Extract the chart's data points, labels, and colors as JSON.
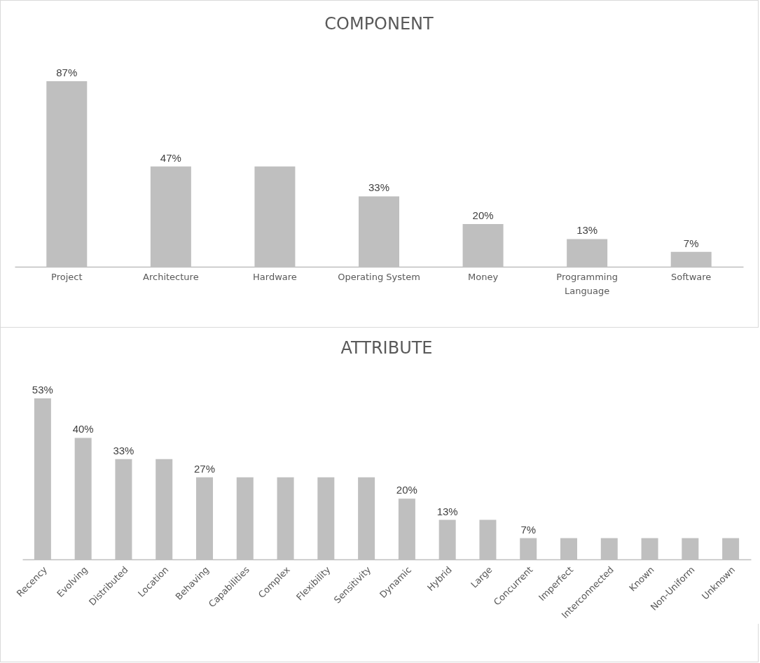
{
  "chart_data": [
    {
      "type": "bar",
      "title": "COMPONENT",
      "categories": [
        "Project",
        "Architecture",
        "Hardware",
        "Operating System",
        "Money",
        "Programming Language",
        "Software"
      ],
      "values": [
        87,
        47,
        47,
        33,
        20,
        13,
        7
      ],
      "value_labels": [
        "87%",
        "47%",
        null,
        "33%",
        "20%",
        "13%",
        "7%"
      ],
      "color": "#bfbfbf"
    },
    {
      "type": "bar",
      "title": "ATTRIBUTE",
      "categories": [
        "Recency",
        "Evolving",
        "Distributed",
        "Location",
        "Behaving",
        "Capabilities",
        "Complex",
        "Flexibility",
        "Sensitivity",
        "Dynamic",
        "Hybrid",
        "Large",
        "Concurrent",
        "Imperfect",
        "Interconnected",
        "Known",
        "Non-Uniform",
        "Unknown"
      ],
      "values": [
        53,
        40,
        33,
        33,
        27,
        27,
        27,
        27,
        27,
        20,
        13,
        13,
        7,
        7,
        7,
        7,
        7,
        7
      ],
      "value_labels": [
        "53%",
        "40%",
        "33%",
        null,
        "27%",
        null,
        null,
        null,
        null,
        "20%",
        "13%",
        null,
        "7%",
        null,
        null,
        null,
        null,
        null
      ],
      "color": "#bfbfbf"
    }
  ]
}
